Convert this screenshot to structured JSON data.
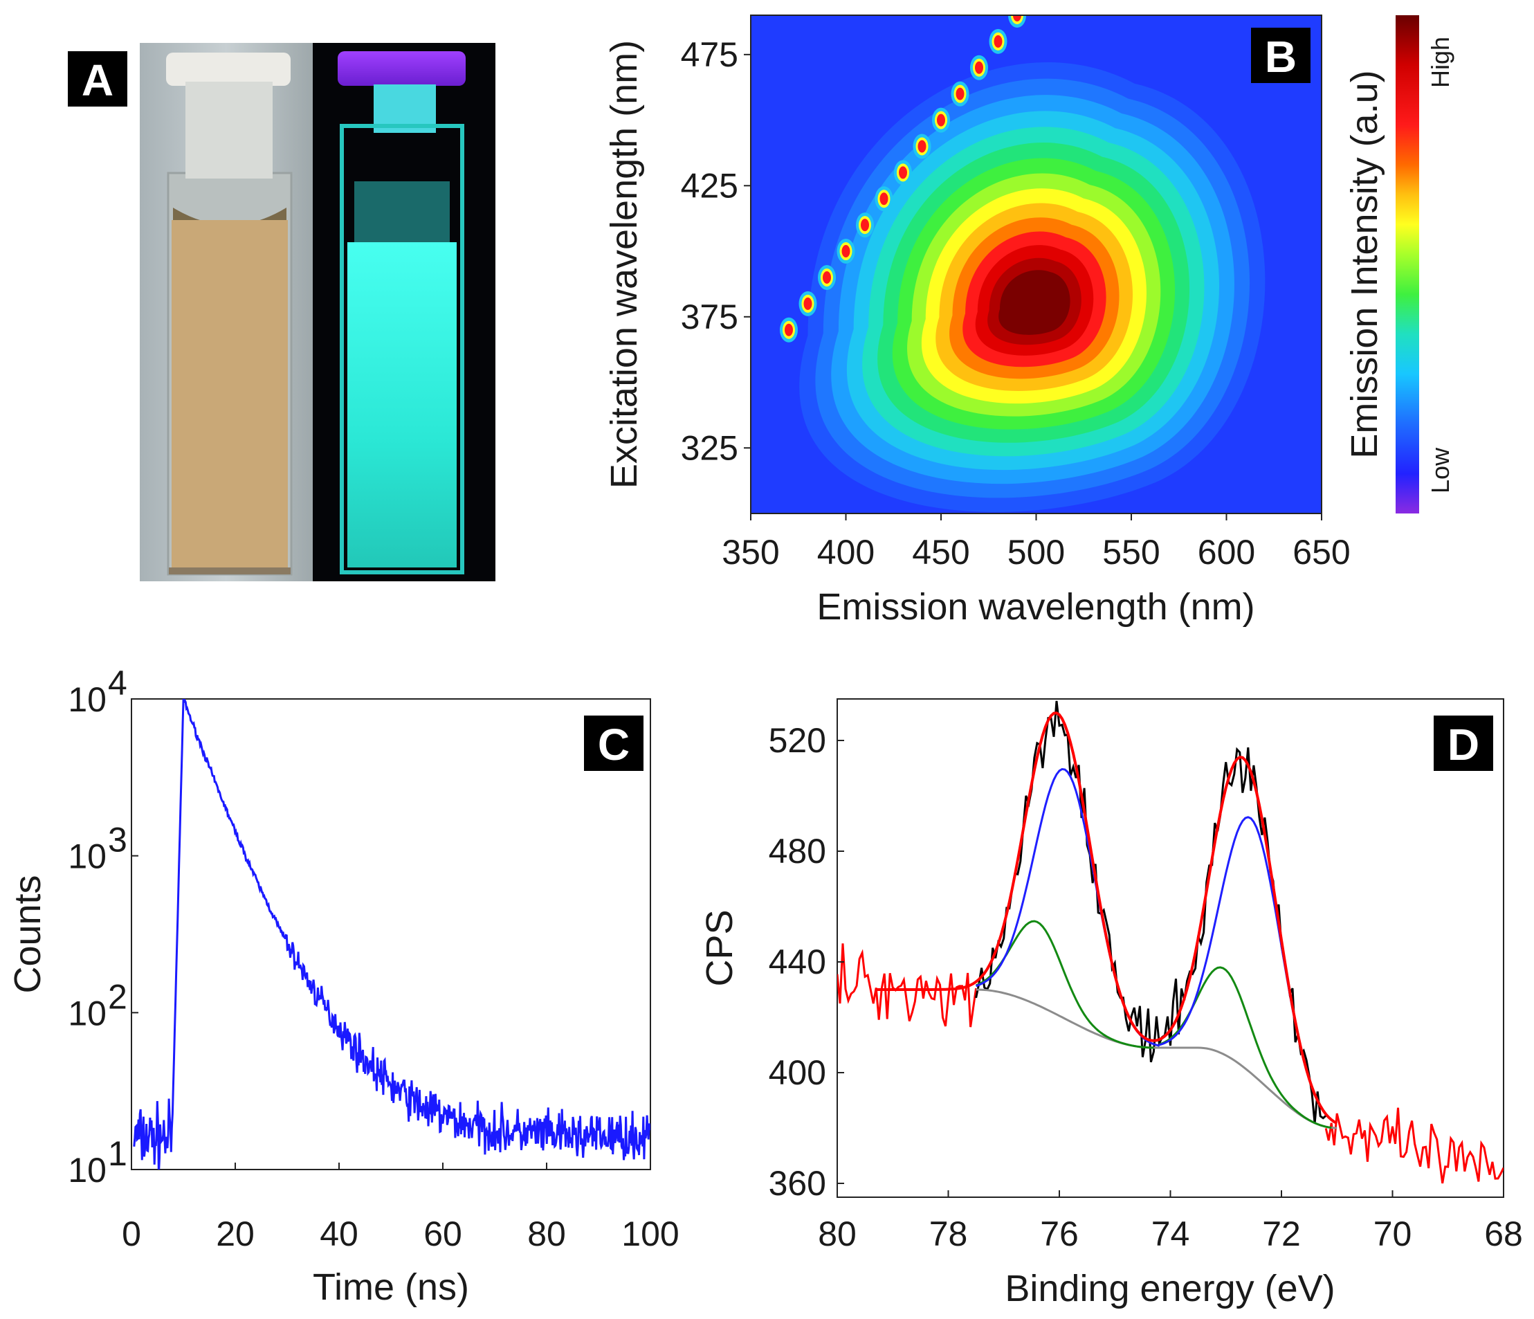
{
  "figure": {
    "panel_labels": [
      "A",
      "B",
      "C",
      "D"
    ],
    "colors": {
      "vial_solution": "#c9a877",
      "vial_fluorescent": "#2ff5e3",
      "background_blue": "#1f3cff",
      "decay_line": "#1a1aff",
      "raw_black": "#000000",
      "envelope_red": "#ff0000",
      "peak_blue": "#1f1fff",
      "peak_green": "#138a13",
      "baseline_gray": "#8c8c8c"
    }
  },
  "chart_data": [
    {
      "panel": "A",
      "type": "photo",
      "description_items": [
        "vial-daylight",
        "vial-uv"
      ]
    },
    {
      "panel": "B",
      "type": "heatmap",
      "xlabel": "Emission wavelength (nm)",
      "ylabel": "Excitation wavelength (nm)",
      "xlim": [
        350,
        650
      ],
      "ylim": [
        300,
        490
      ],
      "xticks": [
        350,
        400,
        450,
        500,
        550,
        600,
        650
      ],
      "yticks": [
        325,
        375,
        425,
        475
      ],
      "colorbar_title": "Emission Intensity (a.u)",
      "colorbar_high": "High",
      "colorbar_low": "Low",
      "main_peak": {
        "emission": 500,
        "excitation": 380
      },
      "scatter_line": {
        "excitation_start": 370,
        "excitation_end": 495,
        "step": 10
      }
    },
    {
      "panel": "C",
      "type": "line",
      "scale": "log",
      "xlabel": "Time (ns)",
      "ylabel": "Counts",
      "xlim": [
        0,
        100
      ],
      "ylim": [
        10,
        10000
      ],
      "xticks": [
        0,
        20,
        40,
        60,
        80,
        100
      ],
      "yticks": [
        {
          "base": "10",
          "exp": "1"
        },
        {
          "base": "10",
          "exp": "2"
        },
        {
          "base": "10",
          "exp": "3"
        },
        {
          "base": "10",
          "exp": "4"
        }
      ],
      "series": [
        {
          "name": "decay",
          "onset_ns": 7.8,
          "peak_ns": 10,
          "peak_counts": 10000,
          "tau_fast_ns": 4.5,
          "tail_counts": 16,
          "pre_counts": 16
        }
      ]
    },
    {
      "panel": "D",
      "type": "line",
      "xlabel": "Binding energy (eV)",
      "ylabel": "CPS",
      "xlim": [
        80,
        68
      ],
      "ylim": [
        355,
        535
      ],
      "xticks": [
        80,
        78,
        76,
        74,
        72,
        70,
        68
      ],
      "yticks": [
        360,
        400,
        440,
        480,
        520
      ],
      "series": [
        {
          "name": "raw-data-black",
          "range": [
            77.5,
            71.2
          ]
        },
        {
          "name": "raw-data-red",
          "ranges": [
            [
              80,
              77.5
            ],
            [
              71.2,
              68
            ]
          ]
        },
        {
          "name": "envelope",
          "range": [
            79.3,
            71
          ]
        },
        {
          "name": "peak-1",
          "center": 75.9,
          "height": 90,
          "sigma": 0.55
        },
        {
          "name": "peak-2",
          "center": 72.55,
          "height": 92,
          "sigma": 0.55
        },
        {
          "name": "peak-3",
          "center": 76.4,
          "height": 30,
          "sigma": 0.45
        },
        {
          "name": "peak-4",
          "center": 73.05,
          "height": 31,
          "sigma": 0.45
        },
        {
          "name": "baseline",
          "start": 430,
          "mid": 409,
          "end": 380
        }
      ]
    }
  ]
}
